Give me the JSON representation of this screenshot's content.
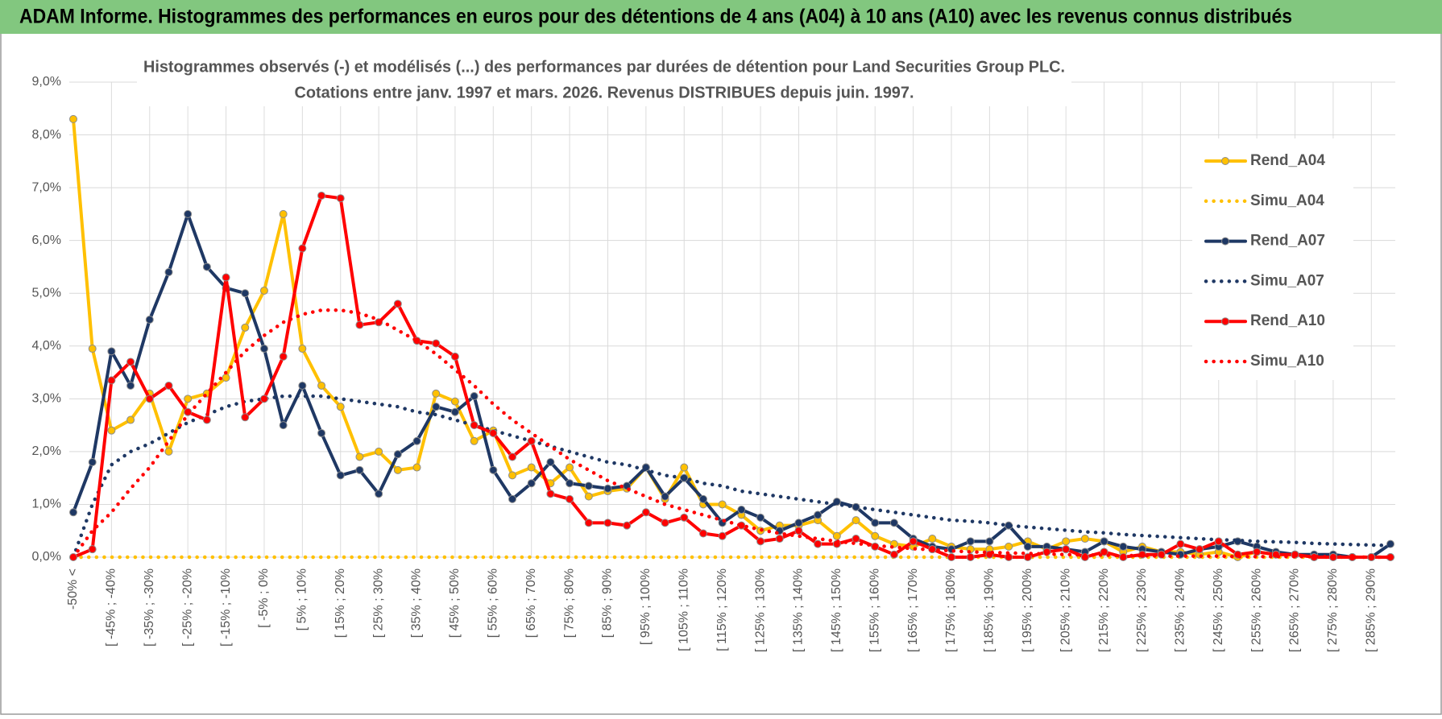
{
  "header": {
    "title": "ADAM Informe. Histogrammes des performances en euros pour des détentions de 4 ans (A04) à 10 ans (A10) avec les revenus connus distribués"
  },
  "chart_data": {
    "type": "line",
    "title": "Histogrammes observés (-) et modélisés (...) des performances par durées de détention pour Land Securities Group PLC.",
    "subtitle": "Cotations entre janv. 1997 et mars. 2026.  Revenus DISTRIBUES depuis juin. 1997.",
    "categories": [
      "-50% <",
      null,
      "[ -45% ; -40%",
      null,
      "[ -35% ; -30%",
      null,
      "[ -25% ; -20%",
      null,
      "[ -15% ; -10%",
      null,
      "[ -5% ; 0%",
      null,
      "[ 5% ; 10%",
      null,
      "[ 15% ; 20%",
      null,
      "[ 25% ; 30%",
      null,
      "[ 35% ; 40%",
      null,
      "[ 45% ; 50%",
      null,
      "[ 55% ; 60%",
      null,
      "[ 65% ; 70%",
      null,
      "[ 75% ; 80%",
      null,
      "[ 85% ; 90%",
      null,
      "[ 95% ; 100%",
      null,
      "[ 105% ; 110%",
      null,
      "[ 115% ; 120%",
      null,
      "[ 125% ; 130%",
      null,
      "[ 135% ; 140%",
      null,
      "[ 145% ; 150%",
      null,
      "[ 155% ; 160%",
      null,
      "[ 165% ; 170%",
      null,
      "[ 175% ; 180%",
      null,
      "[ 185% ; 190%",
      null,
      "[ 195% ; 200%",
      null,
      "[ 205% ; 210%",
      null,
      "[ 215% ; 220%",
      null,
      "[ 225% ; 230%",
      null,
      "[ 235% ; 240%",
      null,
      "[ 245% ; 250%",
      null,
      "[ 255% ; 260%",
      null,
      "[ 265% ; 270%",
      null,
      "[ 275% ; 280%",
      null,
      "[ 285% ; 290%",
      null
    ],
    "ylim": [
      0,
      9
    ],
    "yticks": [
      {
        "value": 0,
        "label": "0,0%"
      },
      {
        "value": 1,
        "label": "1,0%"
      },
      {
        "value": 2,
        "label": "2,0%"
      },
      {
        "value": 3,
        "label": "3,0%"
      },
      {
        "value": 4,
        "label": "4,0%"
      },
      {
        "value": 5,
        "label": "5,0%"
      },
      {
        "value": 6,
        "label": "6,0%"
      },
      {
        "value": 7,
        "label": "7,0%"
      },
      {
        "value": 8,
        "label": "8,0%"
      },
      {
        "value": 9,
        "label": "9,0%"
      }
    ],
    "grid": true,
    "legend": "right",
    "series": [
      {
        "name": "Rend_A04",
        "color": "#FFC000",
        "style": "solid",
        "markers": true,
        "values": [
          8.3,
          3.95,
          2.4,
          2.6,
          3.1,
          2.0,
          3.0,
          3.1,
          3.4,
          4.35,
          5.05,
          6.5,
          3.95,
          3.25,
          2.85,
          1.9,
          2.0,
          1.65,
          1.7,
          3.1,
          2.95,
          2.2,
          2.4,
          1.55,
          1.7,
          1.4,
          1.7,
          1.15,
          1.25,
          1.3,
          1.7,
          1.1,
          1.7,
          1.0,
          1.0,
          0.8,
          0.5,
          0.6,
          0.6,
          0.7,
          0.4,
          0.7,
          0.4,
          0.25,
          0.2,
          0.35,
          0.2,
          0.15,
          0.15,
          0.2,
          0.3,
          0.15,
          0.3,
          0.35,
          0.3,
          0.1,
          0.2,
          0.1,
          0.1,
          0.05,
          0.1,
          0.0,
          0.1,
          0.05,
          0.05,
          0.0,
          0.0,
          0.0,
          0.0,
          0.0
        ]
      },
      {
        "name": "Simu_A04",
        "color": "#FFC000",
        "style": "dotted",
        "markers": false,
        "values": [
          0,
          0,
          0,
          0,
          0,
          0,
          0,
          0,
          0,
          0,
          0,
          0,
          0,
          0,
          0,
          0,
          0,
          0,
          0,
          0,
          0,
          0,
          0,
          0,
          0,
          0,
          0,
          0,
          0,
          0,
          0,
          0,
          0,
          0,
          0,
          0,
          0,
          0,
          0,
          0,
          0,
          0,
          0,
          0,
          0,
          0,
          0,
          0,
          0,
          0,
          0,
          0,
          0,
          0,
          0,
          0,
          0,
          0,
          0,
          0,
          0,
          0,
          0,
          0,
          0,
          0,
          0,
          0,
          0,
          0
        ]
      },
      {
        "name": "Rend_A07",
        "color": "#1F3864",
        "style": "solid",
        "markers": true,
        "values": [
          0.85,
          1.8,
          3.9,
          3.25,
          4.5,
          5.4,
          6.5,
          5.5,
          5.1,
          5.0,
          3.95,
          2.5,
          3.25,
          2.35,
          1.55,
          1.65,
          1.2,
          1.95,
          2.2,
          2.85,
          2.75,
          3.05,
          1.65,
          1.1,
          1.4,
          1.8,
          1.4,
          1.35,
          1.3,
          1.35,
          1.7,
          1.15,
          1.5,
          1.1,
          0.65,
          0.9,
          0.75,
          0.5,
          0.65,
          0.8,
          1.05,
          0.95,
          0.65,
          0.65,
          0.35,
          0.2,
          0.15,
          0.3,
          0.3,
          0.6,
          0.2,
          0.2,
          0.15,
          0.1,
          0.3,
          0.2,
          0.15,
          0.1,
          0.05,
          0.15,
          0.2,
          0.3,
          0.2,
          0.1,
          0.05,
          0.05,
          0.05,
          0.0,
          0.0,
          0.25
        ]
      },
      {
        "name": "Simu_A07",
        "color": "#1F3864",
        "style": "dotted",
        "markers": false,
        "values": [
          0,
          1.0,
          1.75,
          2.0,
          2.15,
          2.35,
          2.55,
          2.7,
          2.85,
          2.95,
          3.0,
          3.05,
          3.05,
          3.05,
          3.0,
          2.95,
          2.9,
          2.85,
          2.75,
          2.7,
          2.6,
          2.5,
          2.4,
          2.3,
          2.2,
          2.1,
          2.0,
          1.9,
          1.8,
          1.75,
          1.65,
          1.55,
          1.5,
          1.4,
          1.35,
          1.25,
          1.2,
          1.15,
          1.1,
          1.05,
          1.0,
          0.95,
          0.9,
          0.85,
          0.8,
          0.75,
          0.7,
          0.68,
          0.65,
          0.6,
          0.57,
          0.54,
          0.51,
          0.48,
          0.46,
          0.43,
          0.41,
          0.39,
          0.37,
          0.35,
          0.33,
          0.32,
          0.3,
          0.29,
          0.28,
          0.26,
          0.25,
          0.24,
          0.23,
          0.22
        ]
      },
      {
        "name": "Rend_A10",
        "color": "#FF0000",
        "style": "solid",
        "markers": true,
        "values": [
          0,
          0.15,
          3.35,
          3.7,
          3.0,
          3.25,
          2.75,
          2.6,
          5.3,
          2.65,
          3.0,
          3.8,
          5.85,
          6.85,
          6.8,
          4.4,
          4.45,
          4.8,
          4.1,
          4.05,
          3.8,
          2.5,
          2.35,
          1.9,
          2.2,
          1.2,
          1.1,
          0.65,
          0.65,
          0.6,
          0.85,
          0.65,
          0.75,
          0.45,
          0.4,
          0.6,
          0.3,
          0.35,
          0.5,
          0.25,
          0.25,
          0.35,
          0.2,
          0.05,
          0.3,
          0.15,
          0.0,
          0.0,
          0.05,
          0.0,
          0.0,
          0.1,
          0.15,
          0.0,
          0.1,
          0.0,
          0.05,
          0.05,
          0.25,
          0.15,
          0.3,
          0.05,
          0.1,
          0.05,
          0.05,
          0.0,
          0.0,
          0.0,
          0.0,
          0.0
        ]
      },
      {
        "name": "Simu_A10",
        "color": "#FF0000",
        "style": "dotted",
        "markers": false,
        "values": [
          0,
          0.5,
          0.85,
          1.3,
          1.7,
          2.2,
          2.7,
          3.1,
          3.5,
          3.9,
          4.2,
          4.45,
          4.6,
          4.68,
          4.68,
          4.62,
          4.5,
          4.3,
          4.1,
          3.85,
          3.55,
          3.25,
          2.9,
          2.6,
          2.35,
          2.1,
          1.85,
          1.65,
          1.45,
          1.3,
          1.15,
          1.0,
          0.9,
          0.8,
          0.7,
          0.6,
          0.52,
          0.45,
          0.4,
          0.35,
          0.3,
          0.26,
          0.22,
          0.19,
          0.16,
          0.14,
          0.12,
          0.1,
          0.09,
          0.08,
          0.07,
          0.06,
          0.05,
          0.04,
          0.04,
          0.03,
          0.03,
          0.02,
          0.02,
          0.02,
          0.02,
          0.01,
          0.01,
          0.01,
          0.01,
          0.01,
          0.01,
          0,
          0,
          0
        ]
      }
    ]
  }
}
